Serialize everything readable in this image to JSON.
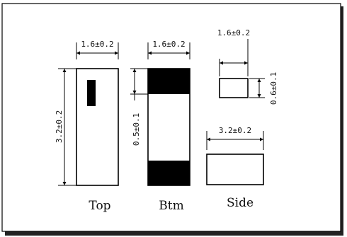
{
  "dimensions": {
    "top_width": "1.6±0.2",
    "top_height": "3.2±0.2",
    "btm_width": "1.6±0.2",
    "btm_band": "0.5±0.1",
    "side_width": "1.6±0.2",
    "side_thickness": "0.6±0.1",
    "side_length": "3.2±0.2"
  },
  "views": {
    "top": "Top",
    "btm": "Btm",
    "side": "Side"
  },
  "colors": {
    "line": "#000000",
    "fill_dark": "#000000",
    "background": "#ffffff"
  }
}
